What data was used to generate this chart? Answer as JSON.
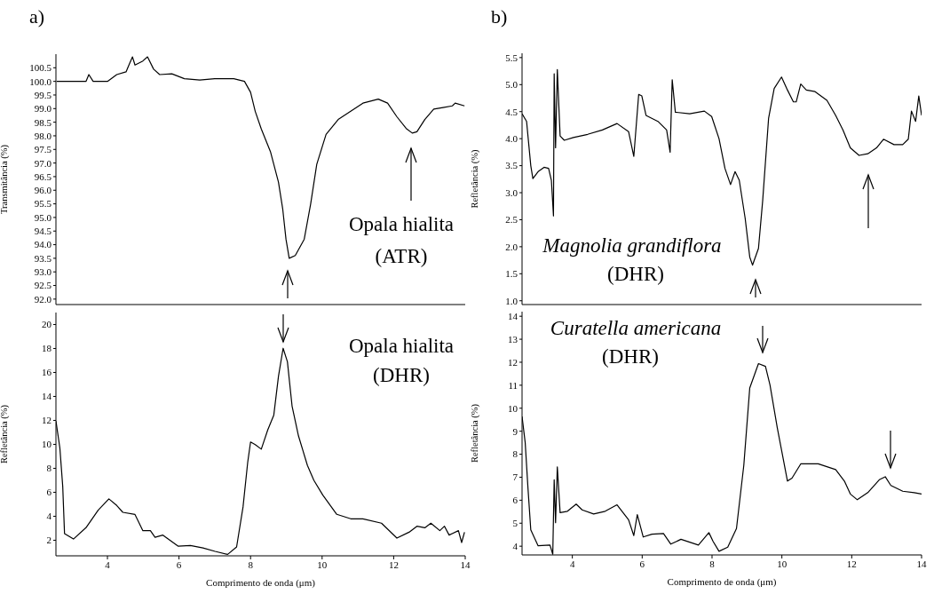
{
  "chart_data": [
    {
      "type": "line",
      "title": "a)",
      "ylabel": "Transmitância (%)",
      "annotations": [
        "Opala hialita",
        "(ATR)"
      ],
      "tick_labels": "y",
      "xlim": [
        2.56,
        14
      ],
      "xticks": [
        4,
        6,
        8,
        10,
        12,
        14
      ],
      "ylim": [
        91.8,
        101.0
      ],
      "yticks": [
        {
          "value": 92,
          "label": "92.0"
        },
        92.5,
        {
          "value": 93,
          "label": "93.0"
        },
        93.5,
        {
          "value": 94,
          "label": "94.0"
        },
        94.5,
        {
          "value": 95,
          "label": "95.0"
        },
        95.5,
        {
          "value": 96,
          "label": "96.0"
        },
        96.5,
        {
          "value": 97,
          "label": "97.0"
        },
        97.5,
        {
          "value": 98,
          "label": "98.0"
        },
        98.5,
        {
          "value": 99,
          "label": "99.0"
        },
        99.5,
        {
          "value": 100,
          "label": "100.0"
        },
        100.5
      ],
      "x": [
        2.58,
        3.4,
        3.48,
        3.6,
        4.0,
        4.26,
        4.52,
        4.6,
        4.7,
        4.77,
        4.99,
        5.12,
        5.29,
        5.46,
        5.8,
        6.15,
        6.58,
        7.0,
        7.53,
        7.83,
        8.0,
        8.13,
        8.3,
        8.56,
        8.78,
        8.9,
        8.99,
        9.08,
        9.25,
        9.5,
        9.68,
        9.85,
        10.11,
        10.45,
        10.8,
        11.14,
        11.57,
        11.83,
        12.09,
        12.35,
        12.52,
        12.65,
        12.87,
        13.12,
        13.38,
        13.64,
        13.72,
        13.98
      ],
      "series": [
        {
          "color": "#000000",
          "values": [
            100.0,
            100.0,
            100.25,
            100.0,
            100.0,
            100.25,
            100.35,
            100.6,
            100.9,
            100.6,
            100.75,
            100.9,
            100.45,
            100.25,
            100.28,
            100.1,
            100.05,
            100.1,
            100.1,
            100.0,
            99.6,
            98.9,
            98.25,
            97.4,
            96.3,
            95.3,
            94.2,
            93.5,
            93.6,
            94.2,
            95.5,
            96.95,
            98.05,
            98.6,
            98.9,
            99.2,
            99.35,
            99.2,
            98.7,
            98.27,
            98.1,
            98.15,
            98.6,
            98.98,
            99.04,
            99.1,
            99.2,
            99.1
          ]
        }
      ]
    },
    {
      "type": "line",
      "title": "b)",
      "ylabel": "Refletância (%)",
      "annotations": [
        "Magnolia grandiflora",
        "(DHR)"
      ],
      "tick_labels": "y",
      "xlim": [
        2.56,
        14
      ],
      "xticks": [
        4,
        6,
        8,
        10,
        12,
        14
      ],
      "ylim": [
        0.93,
        5.58
      ],
      "yticks": [
        {
          "value": 1,
          "label": "1.0"
        },
        1.5,
        {
          "value": 2,
          "label": "2.0"
        },
        2.5,
        {
          "value": 3,
          "label": "3.0"
        },
        3.5,
        {
          "value": 4,
          "label": "4.0"
        },
        4.5,
        {
          "value": 5,
          "label": "5.0"
        },
        5.5
      ],
      "x": [
        2.56,
        2.69,
        2.81,
        2.87,
        3.02,
        3.19,
        3.32,
        3.4,
        3.46,
        3.48,
        3.52,
        3.57,
        3.65,
        3.77,
        4.03,
        4.44,
        4.86,
        5.28,
        5.61,
        5.76,
        5.9,
        5.99,
        6.11,
        6.45,
        6.7,
        6.8,
        6.86,
        6.95,
        7.36,
        7.78,
        7.99,
        8.2,
        8.37,
        8.53,
        8.66,
        8.78,
        8.95,
        9.08,
        9.16,
        9.33,
        9.45,
        9.62,
        9.78,
        9.99,
        10.16,
        10.33,
        10.41,
        10.54,
        10.7,
        10.95,
        11.29,
        11.54,
        11.75,
        11.96,
        12.21,
        12.46,
        12.71,
        12.91,
        13.21,
        13.46,
        13.62,
        13.71,
        13.83,
        13.92,
        14.0
      ],
      "series": [
        {
          "color": "#000000",
          "values": [
            4.46,
            4.32,
            3.5,
            3.26,
            3.39,
            3.47,
            3.45,
            3.23,
            2.57,
            5.2,
            3.83,
            5.28,
            4.05,
            3.97,
            4.02,
            4.08,
            4.16,
            4.28,
            4.13,
            3.67,
            4.82,
            4.79,
            4.43,
            4.32,
            4.16,
            3.75,
            5.09,
            4.49,
            4.46,
            4.51,
            4.41,
            4.0,
            3.45,
            3.15,
            3.39,
            3.23,
            2.52,
            1.81,
            1.66,
            1.97,
            2.85,
            4.38,
            4.93,
            5.14,
            4.9,
            4.68,
            4.68,
            5.01,
            4.9,
            4.87,
            4.71,
            4.43,
            4.16,
            3.83,
            3.69,
            3.72,
            3.83,
            3.99,
            3.89,
            3.89,
            3.99,
            4.51,
            4.32,
            4.79,
            4.43
          ]
        }
      ]
    },
    {
      "type": "line",
      "xlabel": "Comprimento de onda (μm)",
      "ylabel": "Refletância (%)",
      "annotations": [
        "Opala hialita",
        "(DHR)"
      ],
      "xlim": [
        2.56,
        14
      ],
      "xticks": [
        4,
        6,
        8,
        10,
        12,
        14
      ],
      "ylim": [
        0.7,
        21
      ],
      "yticks": [
        2,
        4,
        6,
        8,
        10,
        12,
        14,
        16,
        18,
        20
      ],
      "x": [
        2.56,
        2.67,
        2.75,
        2.8,
        3.05,
        3.4,
        3.74,
        4.04,
        4.26,
        4.43,
        4.77,
        4.99,
        5.2,
        5.33,
        5.55,
        5.98,
        6.32,
        6.67,
        7.01,
        7.36,
        7.61,
        7.79,
        7.92,
        8.0,
        8.13,
        8.3,
        8.48,
        8.65,
        8.78,
        8.91,
        9.03,
        9.16,
        9.34,
        9.59,
        9.77,
        10.02,
        10.41,
        10.8,
        11.14,
        11.66,
        12.09,
        12.43,
        12.65,
        12.87,
        13.04,
        13.29,
        13.42,
        13.55,
        13.81,
        13.9,
        13.98
      ],
      "series": [
        {
          "color": "#000000",
          "values": [
            11.95,
            9.7,
            6.5,
            2.55,
            2.1,
            3.05,
            4.5,
            5.45,
            4.9,
            4.33,
            4.15,
            2.8,
            2.8,
            2.25,
            2.43,
            1.5,
            1.56,
            1.36,
            1.07,
            0.82,
            1.44,
            4.78,
            8.5,
            10.2,
            9.98,
            9.6,
            11.2,
            12.45,
            15.67,
            18.02,
            16.9,
            13.2,
            10.7,
            8.24,
            7.0,
            5.77,
            4.16,
            3.79,
            3.79,
            3.42,
            2.18,
            2.67,
            3.17,
            3.04,
            3.42,
            2.8,
            3.17,
            2.43,
            2.8,
            1.81,
            2.67
          ]
        }
      ]
    },
    {
      "type": "line",
      "xlabel": "Comprimento de onda (μm)",
      "ylabel": "Refletância (%)",
      "annotations": [
        "Curatella americana",
        "(DHR)"
      ],
      "xlim": [
        2.56,
        14
      ],
      "xticks": [
        4,
        6,
        8,
        10,
        12,
        14
      ],
      "ylim": [
        3.62,
        14.2
      ],
      "yticks": [
        4,
        5,
        6,
        7,
        8,
        9,
        10,
        11,
        12,
        13,
        14
      ],
      "x": [
        2.56,
        2.65,
        2.73,
        2.81,
        3.02,
        3.36,
        3.44,
        3.48,
        3.52,
        3.57,
        3.65,
        3.86,
        4.11,
        4.28,
        4.61,
        4.94,
        5.28,
        5.61,
        5.76,
        5.86,
        6.03,
        6.28,
        6.61,
        6.82,
        7.11,
        7.61,
        7.91,
        8.03,
        8.2,
        8.45,
        8.7,
        8.91,
        9.08,
        9.33,
        9.53,
        9.66,
        9.87,
        10.16,
        10.29,
        10.54,
        11.04,
        11.54,
        11.79,
        11.96,
        12.16,
        12.46,
        12.79,
        12.96,
        13.12,
        13.46,
        13.79,
        14.0
      ],
      "series": [
        {
          "color": "#000000",
          "values": [
            9.64,
            8.51,
            6.52,
            4.71,
            4.02,
            4.05,
            3.65,
            6.89,
            5.02,
            7.45,
            5.46,
            5.52,
            5.83,
            5.58,
            5.4,
            5.52,
            5.8,
            5.15,
            4.46,
            5.37,
            4.4,
            4.52,
            4.55,
            4.09,
            4.3,
            4.05,
            4.59,
            4.21,
            3.78,
            3.96,
            4.77,
            7.52,
            10.88,
            11.94,
            11.82,
            11.01,
            9.14,
            6.83,
            6.96,
            7.58,
            7.58,
            7.33,
            6.83,
            6.27,
            6.02,
            6.33,
            6.89,
            7.02,
            6.64,
            6.39,
            6.33,
            6.27
          ]
        }
      ]
    }
  ]
}
